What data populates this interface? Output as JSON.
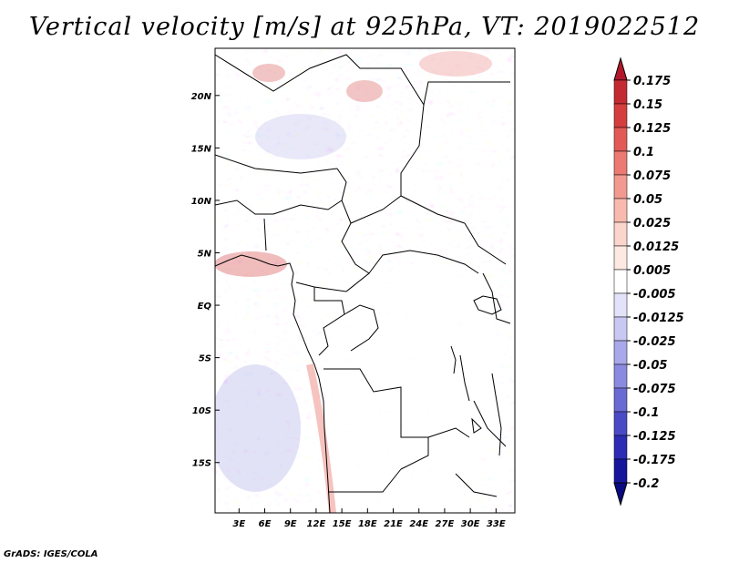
{
  "title": "Vertical velocity [m/s] at 925hPa, VT: 2019022512",
  "credit": "GrADS: IGES/COLA",
  "map": {
    "lat_labels": [
      {
        "label": "20N",
        "lat": 20
      },
      {
        "label": "15N",
        "lat": 15
      },
      {
        "label": "10N",
        "lat": 10
      },
      {
        "label": "5N",
        "lat": 5
      },
      {
        "label": "EQ",
        "lat": 0
      },
      {
        "label": "5S",
        "lat": -5
      },
      {
        "label": "10S",
        "lat": -10
      },
      {
        "label": "15S",
        "lat": -15
      }
    ],
    "lon_labels": [
      {
        "label": "3E",
        "lon": 3
      },
      {
        "label": "6E",
        "lon": 6
      },
      {
        "label": "9E",
        "lon": 9
      },
      {
        "label": "12E",
        "lon": 12
      },
      {
        "label": "15E",
        "lon": 15
      },
      {
        "label": "18E",
        "lon": 18
      },
      {
        "label": "21E",
        "lon": 21
      },
      {
        "label": "24E",
        "lon": 24
      },
      {
        "label": "27E",
        "lon": 27
      },
      {
        "label": "30E",
        "lon": 30
      },
      {
        "label": "33E",
        "lon": 33
      }
    ],
    "lon_range": [
      0.2,
      35.2
    ],
    "lat_range": [
      -19.8,
      24.5
    ]
  },
  "colorbar": {
    "labels": [
      "0.175",
      "0.15",
      "0.125",
      "0.1",
      "0.075",
      "0.05",
      "0.025",
      "0.0125",
      "0.005",
      "-0.005",
      "-0.0125",
      "-0.025",
      "-0.05",
      "-0.075",
      "-0.1",
      "-0.125",
      "-0.175",
      "-0.2"
    ],
    "colors": [
      "#b2182b",
      "#c42a32",
      "#d53e3e",
      "#e25a56",
      "#ec7a72",
      "#f39a90",
      "#f8baae",
      "#fbd5cc",
      "#fde8e2",
      "#ffffff",
      "#e2e2fa",
      "#c8c8f2",
      "#a8a8ea",
      "#8a8ae0",
      "#6a6ad4",
      "#4a4ac6",
      "#2c2cb4",
      "#16169c",
      "#0a0a80"
    ]
  }
}
